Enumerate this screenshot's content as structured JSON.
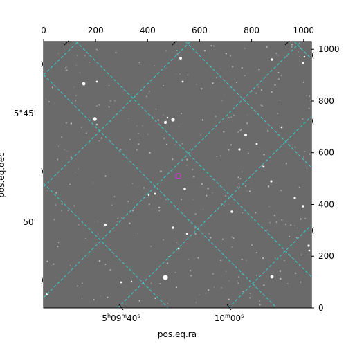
{
  "colors": {
    "background": "#ffffff",
    "sky": "#6a6a6a",
    "grid": "#33d1d1",
    "marker": "#c934d3",
    "star": "#ffffff",
    "frame": "#000000"
  },
  "axes": {
    "top_ticks": [
      {
        "label": "0",
        "value": 0
      },
      {
        "label": "200",
        "value": 200
      },
      {
        "label": "400",
        "value": 400
      },
      {
        "label": "600",
        "value": 600
      },
      {
        "label": "800",
        "value": 800
      },
      {
        "label": "1000",
        "value": 1000
      }
    ],
    "right_ticks": [
      {
        "label": "0",
        "value": 0
      },
      {
        "label": "200",
        "value": 200
      },
      {
        "label": "400",
        "value": 400
      },
      {
        "label": "600",
        "value": 600
      },
      {
        "label": "800",
        "value": 800
      },
      {
        "label": "1000",
        "value": 1000
      }
    ],
    "left_ticks": [
      {
        "label_deg": "5°45'",
        "value": 750
      },
      {
        "label_deg": "50'",
        "value": 330
      }
    ],
    "bottom_ticks": [
      {
        "label": "5h09m40s",
        "value": 300
      },
      {
        "label": "10m00s",
        "value": 710
      }
    ],
    "xlabel": "pos.eq.ra",
    "ylabel": "pos.eq.dec",
    "pixel_range": [
      0,
      1030
    ],
    "grid": true
  },
  "bottom_tick_parts": {
    "ra1": {
      "h": "5",
      "h_unit": "h",
      "m": "09",
      "m_unit": "m",
      "s": "40",
      "s_unit": "s"
    },
    "ra2": {
      "m": "10",
      "m_unit": "m",
      "s": "00",
      "s_unit": "s"
    }
  },
  "target": {
    "x": 518,
    "y": 510
  }
}
